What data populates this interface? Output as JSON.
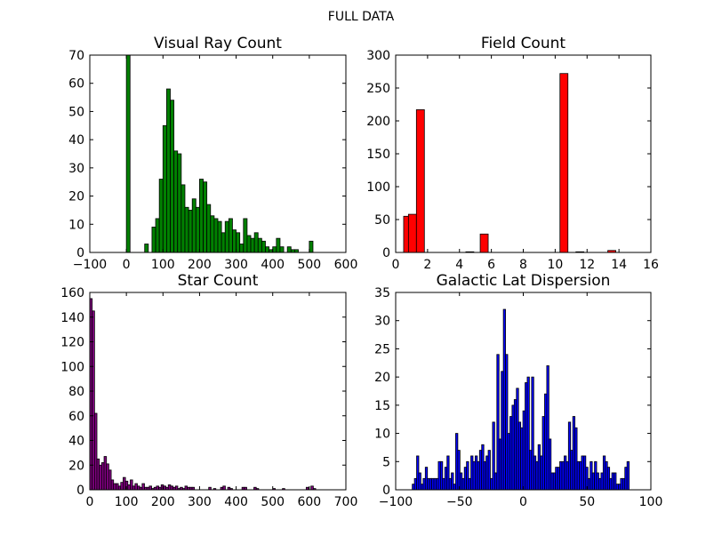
{
  "suptitle": "FULL DATA",
  "chart_data": [
    {
      "type": "bar",
      "title": "Visual Ray Count",
      "color": "#008000",
      "xlim": [
        -100,
        600
      ],
      "ylim": [
        0,
        70
      ],
      "xticks": [
        -100,
        0,
        100,
        200,
        300,
        400,
        500,
        600
      ],
      "yticks": [
        0,
        10,
        20,
        30,
        40,
        50,
        60,
        70
      ],
      "bin_width": 10,
      "bins": [
        [
          0,
          70
        ],
        [
          50,
          3
        ],
        [
          70,
          9
        ],
        [
          80,
          12
        ],
        [
          90,
          26
        ],
        [
          100,
          45
        ],
        [
          110,
          58
        ],
        [
          120,
          54
        ],
        [
          130,
          36
        ],
        [
          140,
          35
        ],
        [
          150,
          24
        ],
        [
          160,
          16
        ],
        [
          170,
          15
        ],
        [
          180,
          19
        ],
        [
          190,
          16
        ],
        [
          200,
          26
        ],
        [
          210,
          25
        ],
        [
          220,
          17
        ],
        [
          230,
          13
        ],
        [
          240,
          12
        ],
        [
          250,
          11
        ],
        [
          260,
          7
        ],
        [
          270,
          11
        ],
        [
          280,
          12
        ],
        [
          290,
          8
        ],
        [
          300,
          7
        ],
        [
          310,
          3
        ],
        [
          320,
          12
        ],
        [
          330,
          6
        ],
        [
          340,
          5
        ],
        [
          350,
          7
        ],
        [
          360,
          5
        ],
        [
          370,
          4
        ],
        [
          380,
          2
        ],
        [
          390,
          1
        ],
        [
          400,
          2
        ],
        [
          410,
          5
        ],
        [
          420,
          2
        ],
        [
          440,
          2
        ],
        [
          450,
          1
        ],
        [
          460,
          1
        ],
        [
          500,
          4
        ]
      ]
    },
    {
      "type": "bar",
      "title": "Field Count",
      "color": "#ff0000",
      "xlim": [
        0,
        16
      ],
      "ylim": [
        0,
        300
      ],
      "xticks": [
        0,
        2,
        4,
        6,
        8,
        10,
        12,
        14,
        16
      ],
      "yticks": [
        0,
        50,
        100,
        150,
        200,
        250,
        300
      ],
      "bin_width": 0.5,
      "bins": [
        [
          0.5,
          55
        ],
        [
          0.8,
          58
        ],
        [
          1.3,
          217
        ],
        [
          4.4,
          1
        ],
        [
          5.3,
          28
        ],
        [
          10.3,
          272
        ],
        [
          11.3,
          1
        ],
        [
          13.3,
          3
        ]
      ]
    },
    {
      "type": "bar",
      "title": "Star Count",
      "color": "#800080",
      "xlim": [
        0,
        700
      ],
      "ylim": [
        0,
        160
      ],
      "xticks": [
        0,
        100,
        200,
        300,
        400,
        500,
        600,
        700
      ],
      "yticks": [
        0,
        20,
        40,
        60,
        80,
        100,
        120,
        140,
        160
      ],
      "bin_width": 6.5,
      "bins": [
        [
          0,
          155
        ],
        [
          6.5,
          145
        ],
        [
          13,
          62
        ],
        [
          19.5,
          25
        ],
        [
          26,
          20
        ],
        [
          32.5,
          22
        ],
        [
          39,
          27
        ],
        [
          45.5,
          21
        ],
        [
          52,
          16
        ],
        [
          58.5,
          8
        ],
        [
          65,
          5
        ],
        [
          71.5,
          5
        ],
        [
          78,
          3
        ],
        [
          84.5,
          6
        ],
        [
          91,
          10
        ],
        [
          97.5,
          7
        ],
        [
          104,
          4
        ],
        [
          110.5,
          8
        ],
        [
          117,
          3
        ],
        [
          123.5,
          5
        ],
        [
          130,
          3
        ],
        [
          136.5,
          2
        ],
        [
          143,
          5
        ],
        [
          149.5,
          2
        ],
        [
          156,
          2
        ],
        [
          162.5,
          3
        ],
        [
          169,
          1
        ],
        [
          175.5,
          2
        ],
        [
          182,
          3
        ],
        [
          188.5,
          2
        ],
        [
          195,
          4
        ],
        [
          201.5,
          3
        ],
        [
          208,
          2
        ],
        [
          214.5,
          4
        ],
        [
          221,
          3
        ],
        [
          227.5,
          2
        ],
        [
          234,
          3
        ],
        [
          240.5,
          1
        ],
        [
          247,
          2
        ],
        [
          253.5,
          1
        ],
        [
          260,
          3
        ],
        [
          266.5,
          2
        ],
        [
          273,
          2
        ],
        [
          279.5,
          2
        ],
        [
          325,
          2
        ],
        [
          338,
          1
        ],
        [
          357.5,
          2
        ],
        [
          364,
          3
        ],
        [
          377,
          2
        ],
        [
          383.5,
          1
        ],
        [
          416,
          2
        ],
        [
          422.5,
          2
        ],
        [
          448.5,
          2
        ],
        [
          455,
          1
        ],
        [
          500.5,
          1
        ],
        [
          526.5,
          1
        ],
        [
          591.5,
          2
        ],
        [
          604.5,
          3
        ],
        [
          611,
          1
        ]
      ]
    },
    {
      "type": "bar",
      "title": "Galactic Lat Dispersion",
      "color": "#0000ff",
      "xlim": [
        -100,
        100
      ],
      "ylim": [
        0,
        35
      ],
      "xticks": [
        -100,
        -50,
        0,
        50,
        100
      ],
      "yticks": [
        0,
        5,
        10,
        15,
        20,
        25,
        30,
        35
      ],
      "bin_width": 1.7,
      "bins": [
        [
          -87,
          1
        ],
        [
          -85.3,
          2
        ],
        [
          -83.6,
          6
        ],
        [
          -81.9,
          3
        ],
        [
          -80.2,
          1
        ],
        [
          -78.5,
          2
        ],
        [
          -76.8,
          4
        ],
        [
          -75.1,
          2
        ],
        [
          -73.4,
          2
        ],
        [
          -71.7,
          2
        ],
        [
          -70,
          2
        ],
        [
          -68.3,
          2
        ],
        [
          -66.6,
          5
        ],
        [
          -64.9,
          5
        ],
        [
          -63.2,
          2
        ],
        [
          -61.5,
          4
        ],
        [
          -59.8,
          6
        ],
        [
          -58.1,
          2
        ],
        [
          -56.4,
          3
        ],
        [
          -54.7,
          1
        ],
        [
          -53,
          10
        ],
        [
          -51.3,
          7
        ],
        [
          -49.6,
          3
        ],
        [
          -47.9,
          2
        ],
        [
          -46.2,
          4
        ],
        [
          -44.5,
          5
        ],
        [
          -42.8,
          2
        ],
        [
          -41.1,
          6
        ],
        [
          -39.4,
          5
        ],
        [
          -37.7,
          6
        ],
        [
          -36,
          5
        ],
        [
          -34.3,
          7
        ],
        [
          -32.6,
          8
        ],
        [
          -30.9,
          5
        ],
        [
          -29.2,
          6
        ],
        [
          -27.5,
          7
        ],
        [
          -25.8,
          2
        ],
        [
          -24.1,
          12
        ],
        [
          -22.4,
          3
        ],
        [
          -20.7,
          24
        ],
        [
          -19,
          9
        ],
        [
          -17.3,
          21
        ],
        [
          -15.6,
          32
        ],
        [
          -13.9,
          24
        ],
        [
          -12.2,
          10
        ],
        [
          -10.5,
          13
        ],
        [
          -8.8,
          15
        ],
        [
          -7.1,
          16
        ],
        [
          -5.4,
          18
        ],
        [
          -3.7,
          12
        ],
        [
          -2,
          11
        ],
        [
          -0.3,
          14
        ],
        [
          1.4,
          19
        ],
        [
          3.1,
          20
        ],
        [
          4.8,
          7
        ],
        [
          6.5,
          20
        ],
        [
          8.2,
          6
        ],
        [
          9.9,
          5
        ],
        [
          11.6,
          8
        ],
        [
          13.3,
          6
        ],
        [
          15,
          13
        ],
        [
          16.7,
          17
        ],
        [
          18.4,
          22
        ],
        [
          20.1,
          9
        ],
        [
          21.8,
          3
        ],
        [
          23.5,
          3
        ],
        [
          25.2,
          4
        ],
        [
          26.9,
          4
        ],
        [
          28.6,
          5
        ],
        [
          30.3,
          5
        ],
        [
          32,
          6
        ],
        [
          33.7,
          5
        ],
        [
          35.4,
          12
        ],
        [
          37.1,
          7
        ],
        [
          38.8,
          13
        ],
        [
          40.5,
          11
        ],
        [
          42.2,
          5
        ],
        [
          43.9,
          5
        ],
        [
          45.6,
          6
        ],
        [
          47.3,
          6
        ],
        [
          49,
          4
        ],
        [
          50.7,
          2
        ],
        [
          52.4,
          5
        ],
        [
          54.1,
          3
        ],
        [
          55.8,
          5
        ],
        [
          57.5,
          3
        ],
        [
          59.2,
          2
        ],
        [
          60.9,
          3
        ],
        [
          62.6,
          6
        ],
        [
          64.3,
          5
        ],
        [
          66,
          4
        ],
        [
          67.7,
          2
        ],
        [
          69.4,
          3
        ],
        [
          71.1,
          3
        ],
        [
          72.8,
          1
        ],
        [
          74.5,
          1
        ],
        [
          76.2,
          2
        ],
        [
          77.9,
          2
        ],
        [
          79.6,
          4
        ],
        [
          81.3,
          5
        ]
      ]
    }
  ]
}
